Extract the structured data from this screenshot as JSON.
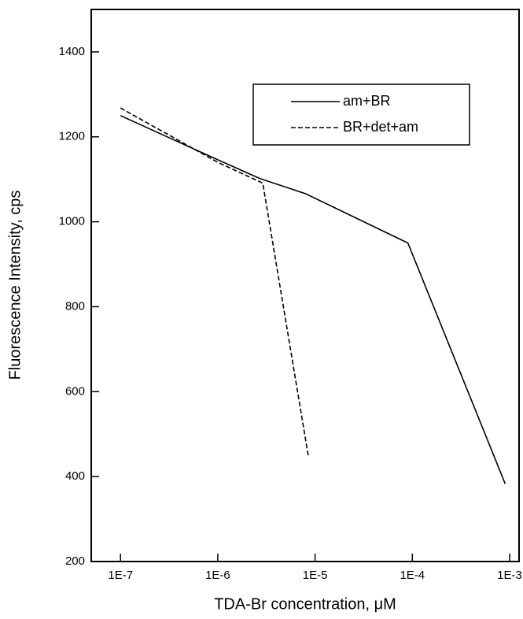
{
  "chart_data": {
    "type": "line",
    "x_label": "TDA-Br concentration, μM",
    "y_label": "Fluorescence Intensity, cps",
    "xscale": "log",
    "xlim": [
      5e-08,
      0.00125
    ],
    "xticks": [
      {
        "value": 1e-07,
        "label": "1E-7"
      },
      {
        "value": 1e-06,
        "label": "1E-6"
      },
      {
        "value": 1e-05,
        "label": "1E-5"
      },
      {
        "value": 0.0001,
        "label": "1E-4"
      },
      {
        "value": 0.001,
        "label": "1E-3"
      }
    ],
    "ylim": [
      200,
      1500
    ],
    "yticks": [
      200,
      400,
      600,
      800,
      1000,
      1200,
      1400
    ],
    "grid": false,
    "legend": "upper right",
    "series": [
      {
        "name": "am+BR",
        "color": "#000000",
        "dash": "solid",
        "x": [
          1e-07,
          1e-06,
          2.7e-06,
          8e-06,
          9e-05,
          0.0009
        ],
        "values": [
          1250,
          1146,
          1102,
          1066,
          950,
          383
        ]
      },
      {
        "name": "BR+det+am",
        "color": "#000000",
        "dash": "dashed",
        "x": [
          1e-07,
          1e-06,
          2.9e-06,
          8.5e-06
        ],
        "values": [
          1268,
          1140,
          1091,
          450
        ]
      }
    ]
  }
}
